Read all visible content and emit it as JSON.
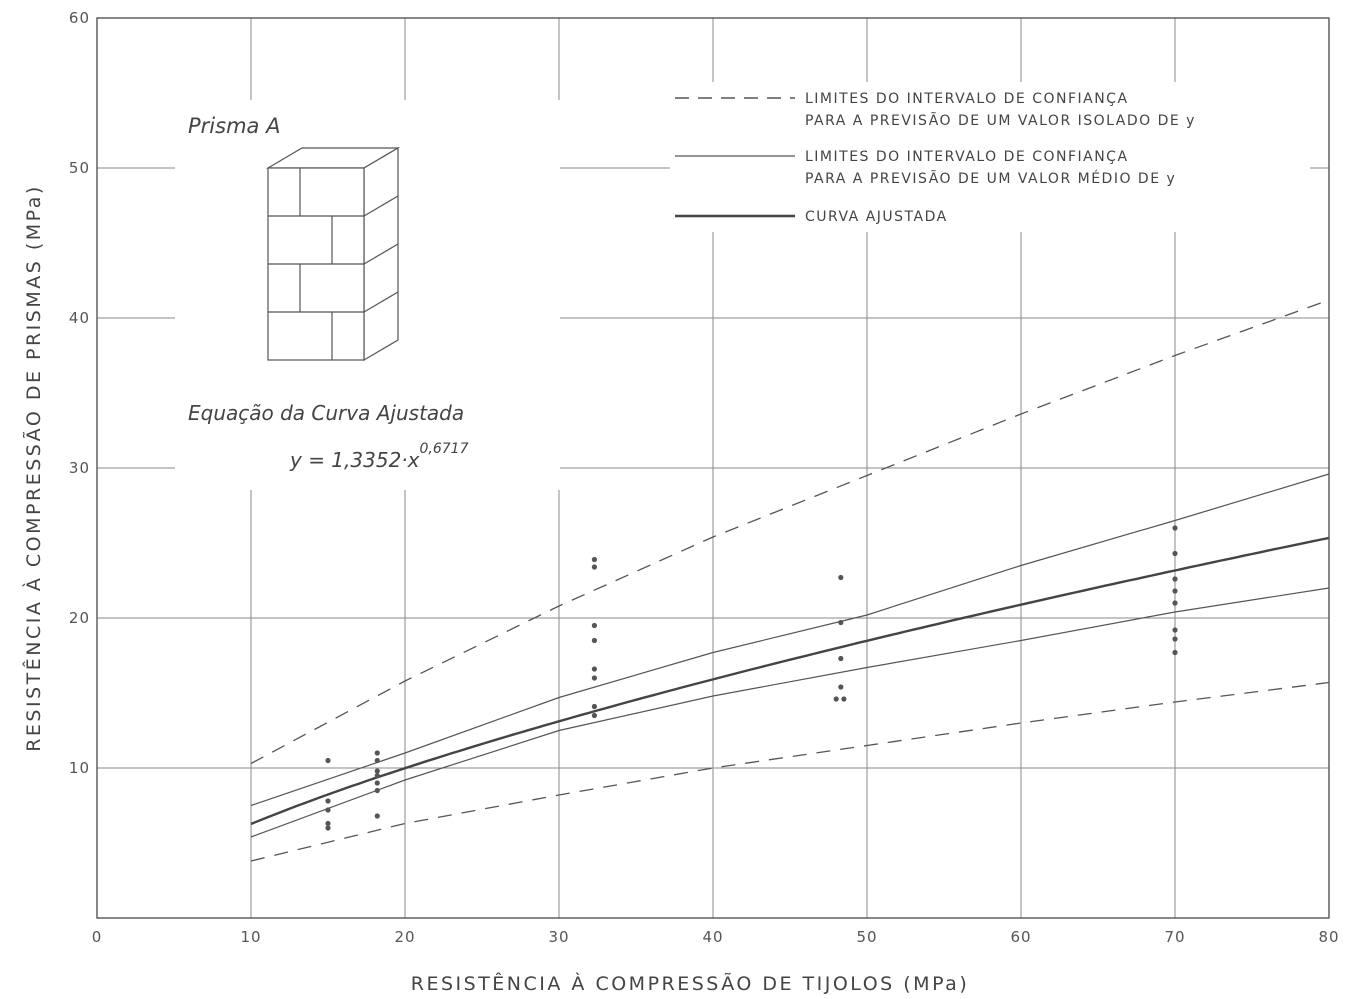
{
  "chart_data": {
    "type": "scatter",
    "xlabel": "RESISTÊNCIA À COMPRESSÃO DE TIJOLOS (MPa)",
    "ylabel": "RESISTÊNCIA À COMPRESSÃO DE PRISMAS (MPa)",
    "xlim": [
      0,
      80
    ],
    "ylim": [
      0,
      60
    ],
    "x_ticks": [
      "0",
      "10",
      "20",
      "30",
      "40",
      "50",
      "60",
      "70",
      "80"
    ],
    "y_ticks": [
      "10",
      "20",
      "30",
      "40",
      "50",
      "60"
    ],
    "grid": true,
    "legend_position": "top-right",
    "legend": [
      {
        "style": "dashed",
        "line1": "LIMITES DO INTERVALO DE CONFIANÇA",
        "line2": "PARA A PREVISÃO DE UM VALOR ISOLADO DE y"
      },
      {
        "style": "thin",
        "line1": "LIMITES DO INTERVALO DE CONFIANÇA",
        "line2": "PARA A PREVISÃO DE UM VALOR MÉDIO DE y"
      },
      {
        "style": "thick",
        "line1": "CURVA AJUSTADA",
        "line2": ""
      }
    ],
    "annotations": {
      "specimen": "Prisma A",
      "equation_title": "Equação da Curva Ajustada",
      "equation_base": "y = 1,3352·x",
      "equation_exponent": "0,6717"
    },
    "fitted_curve": {
      "a": 1.3352,
      "b": 0.6717
    },
    "series": [
      {
        "style": "dashed",
        "x": [
          10,
          20,
          30,
          40,
          50,
          60,
          70,
          80
        ],
        "y": [
          10.3,
          15.8,
          20.8,
          25.4,
          29.5,
          33.6,
          37.5,
          41.2
        ]
      },
      {
        "style": "thin",
        "x": [
          10,
          20,
          30,
          40,
          50,
          60,
          70,
          80
        ],
        "y": [
          7.5,
          11.0,
          14.7,
          17.7,
          20.2,
          23.5,
          26.5,
          29.6
        ]
      },
      {
        "style": "thin",
        "x": [
          10,
          20,
          30,
          40,
          50,
          60,
          70,
          80
        ],
        "y": [
          5.4,
          9.2,
          12.5,
          14.8,
          16.7,
          18.5,
          20.4,
          22.0
        ]
      },
      {
        "style": "dashed",
        "x": [
          10,
          20,
          30,
          40,
          50,
          60,
          70,
          80
        ],
        "y": [
          3.8,
          6.3,
          8.2,
          10.0,
          11.5,
          13.0,
          14.4,
          15.7
        ]
      }
    ],
    "points": [
      {
        "x": 15,
        "y": 10.5
      },
      {
        "x": 15,
        "y": 7.8
      },
      {
        "x": 15,
        "y": 7.2
      },
      {
        "x": 15,
        "y": 6.3
      },
      {
        "x": 15,
        "y": 6.0
      },
      {
        "x": 18.2,
        "y": 11.0
      },
      {
        "x": 18.2,
        "y": 10.5
      },
      {
        "x": 18.2,
        "y": 9.8
      },
      {
        "x": 18.2,
        "y": 9.5
      },
      {
        "x": 18.2,
        "y": 9.0
      },
      {
        "x": 18.2,
        "y": 8.5
      },
      {
        "x": 18.2,
        "y": 6.8
      },
      {
        "x": 32.3,
        "y": 23.9
      },
      {
        "x": 32.3,
        "y": 23.4
      },
      {
        "x": 32.3,
        "y": 19.5
      },
      {
        "x": 32.3,
        "y": 18.5
      },
      {
        "x": 32.3,
        "y": 16.6
      },
      {
        "x": 32.3,
        "y": 16.0
      },
      {
        "x": 32.3,
        "y": 14.1
      },
      {
        "x": 32.3,
        "y": 13.5
      },
      {
        "x": 48.3,
        "y": 22.7
      },
      {
        "x": 48.3,
        "y": 19.7
      },
      {
        "x": 48.3,
        "y": 17.3
      },
      {
        "x": 48.3,
        "y": 15.4
      },
      {
        "x": 48.0,
        "y": 14.6
      },
      {
        "x": 48.5,
        "y": 14.6
      },
      {
        "x": 70,
        "y": 26.0
      },
      {
        "x": 70,
        "y": 24.3
      },
      {
        "x": 70,
        "y": 22.6
      },
      {
        "x": 70,
        "y": 21.8
      },
      {
        "x": 70,
        "y": 21.0
      },
      {
        "x": 70,
        "y": 19.2
      },
      {
        "x": 70,
        "y": 18.6
      },
      {
        "x": 70,
        "y": 17.7
      }
    ]
  }
}
